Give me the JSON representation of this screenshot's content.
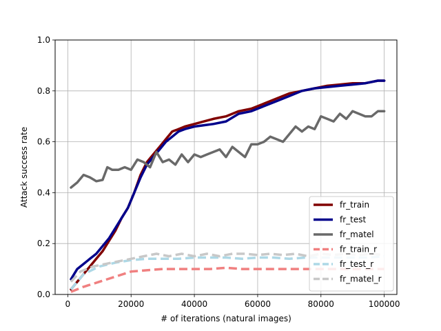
{
  "chart_data": {
    "type": "line",
    "title": "",
    "xlabel": "# of iterations (natural images)",
    "ylabel": "Attack success rate",
    "xlim": [
      -4000,
      104000
    ],
    "ylim": [
      0.0,
      1.0
    ],
    "xticks": [
      0,
      20000,
      40000,
      60000,
      80000,
      100000
    ],
    "xtick_labels": [
      "0",
      "20000",
      "40000",
      "60000",
      "80000",
      "100000"
    ],
    "yticks": [
      0.0,
      0.2,
      0.4,
      0.6,
      0.8,
      1.0
    ],
    "ytick_labels": [
      "0.0",
      "0.2",
      "0.4",
      "0.6",
      "0.8",
      "1.0"
    ],
    "grid": true,
    "legend_position": "bottom-right",
    "series": [
      {
        "name": "fr_train",
        "color": "#800000",
        "dash": "solid",
        "x": [
          1000,
          3000,
          5000,
          7000,
          9000,
          11000,
          13000,
          15000,
          17000,
          19000,
          21000,
          23000,
          25000,
          27000,
          29000,
          31000,
          33000,
          35000,
          37000,
          40000,
          43000,
          46000,
          50000,
          54000,
          58000,
          62000,
          66000,
          70000,
          74000,
          78000,
          82000,
          86000,
          90000,
          94000,
          98000,
          100000
        ],
        "y": [
          0.02,
          0.05,
          0.08,
          0.11,
          0.14,
          0.17,
          0.21,
          0.25,
          0.3,
          0.34,
          0.4,
          0.47,
          0.52,
          0.55,
          0.58,
          0.61,
          0.64,
          0.65,
          0.66,
          0.67,
          0.68,
          0.69,
          0.7,
          0.72,
          0.73,
          0.75,
          0.77,
          0.79,
          0.8,
          0.81,
          0.82,
          0.825,
          0.83,
          0.83,
          0.84,
          0.84
        ]
      },
      {
        "name": "fr_test",
        "color": "#00008b",
        "dash": "solid",
        "x": [
          1000,
          3000,
          5000,
          7000,
          9000,
          11000,
          13000,
          15000,
          17000,
          19000,
          21000,
          23000,
          25000,
          27000,
          29000,
          31000,
          33000,
          35000,
          37000,
          40000,
          43000,
          46000,
          50000,
          54000,
          58000,
          62000,
          66000,
          70000,
          74000,
          78000,
          82000,
          86000,
          90000,
          94000,
          98000,
          100000
        ],
        "y": [
          0.06,
          0.1,
          0.12,
          0.14,
          0.16,
          0.19,
          0.22,
          0.26,
          0.3,
          0.34,
          0.4,
          0.46,
          0.51,
          0.54,
          0.57,
          0.6,
          0.62,
          0.64,
          0.65,
          0.66,
          0.665,
          0.67,
          0.68,
          0.71,
          0.72,
          0.74,
          0.76,
          0.78,
          0.8,
          0.81,
          0.815,
          0.82,
          0.825,
          0.83,
          0.84,
          0.84
        ]
      },
      {
        "name": "fr_matel",
        "color": "#696969",
        "dash": "solid",
        "x": [
          1000,
          3000,
          5000,
          7000,
          9000,
          11000,
          12500,
          14000,
          16000,
          18000,
          20000,
          22000,
          24000,
          26000,
          28000,
          30000,
          32000,
          34000,
          36000,
          38000,
          40000,
          42000,
          44000,
          46000,
          48000,
          50000,
          52000,
          54000,
          56000,
          58000,
          60000,
          62000,
          64000,
          66000,
          68000,
          70000,
          72000,
          74000,
          76000,
          78000,
          80000,
          82000,
          84000,
          86000,
          88000,
          90000,
          92000,
          94000,
          96000,
          98000,
          100000
        ],
        "y": [
          0.42,
          0.44,
          0.47,
          0.46,
          0.445,
          0.45,
          0.5,
          0.49,
          0.49,
          0.5,
          0.49,
          0.53,
          0.52,
          0.5,
          0.56,
          0.52,
          0.53,
          0.51,
          0.55,
          0.52,
          0.55,
          0.54,
          0.55,
          0.56,
          0.57,
          0.54,
          0.58,
          0.56,
          0.54,
          0.59,
          0.59,
          0.6,
          0.62,
          0.61,
          0.6,
          0.63,
          0.66,
          0.64,
          0.66,
          0.65,
          0.7,
          0.69,
          0.68,
          0.71,
          0.69,
          0.72,
          0.71,
          0.7,
          0.7,
          0.72,
          0.72
        ]
      },
      {
        "name": "fr_train_r",
        "color": "#f08080",
        "dash": "dashed",
        "x": [
          1000,
          5000,
          10000,
          15000,
          20000,
          25000,
          30000,
          35000,
          40000,
          45000,
          50000,
          55000,
          60000,
          65000,
          70000,
          75000,
          80000,
          85000,
          90000,
          95000,
          100000
        ],
        "y": [
          0.01,
          0.03,
          0.05,
          0.07,
          0.09,
          0.095,
          0.1,
          0.1,
          0.1,
          0.1,
          0.105,
          0.1,
          0.1,
          0.1,
          0.1,
          0.1,
          0.1,
          0.1,
          0.1,
          0.1,
          0.1
        ]
      },
      {
        "name": "fr_test_r",
        "color": "#add8e6",
        "dash": "dashed",
        "x": [
          1000,
          5000,
          10000,
          15000,
          20000,
          25000,
          30000,
          35000,
          40000,
          45000,
          50000,
          55000,
          60000,
          65000,
          70000,
          75000,
          80000,
          85000,
          90000,
          95000,
          100000
        ],
        "y": [
          0.02,
          0.08,
          0.11,
          0.125,
          0.135,
          0.14,
          0.14,
          0.14,
          0.145,
          0.145,
          0.145,
          0.14,
          0.145,
          0.145,
          0.14,
          0.145,
          0.145,
          0.145,
          0.145,
          0.145,
          0.15
        ]
      },
      {
        "name": "fr_matel_r",
        "color": "#c8c8c8",
        "dash": "dashed",
        "x": [
          1000,
          4000,
          8000,
          12000,
          16000,
          20000,
          24000,
          28000,
          32000,
          36000,
          40000,
          44000,
          48000,
          52000,
          56000,
          60000,
          64000,
          68000,
          72000,
          76000,
          80000,
          84000,
          88000,
          92000,
          96000,
          100000
        ],
        "y": [
          0.05,
          0.09,
          0.11,
          0.12,
          0.13,
          0.14,
          0.15,
          0.16,
          0.15,
          0.16,
          0.15,
          0.16,
          0.15,
          0.16,
          0.16,
          0.155,
          0.16,
          0.155,
          0.16,
          0.15,
          0.16,
          0.155,
          0.16,
          0.155,
          0.16,
          0.155
        ]
      }
    ]
  }
}
